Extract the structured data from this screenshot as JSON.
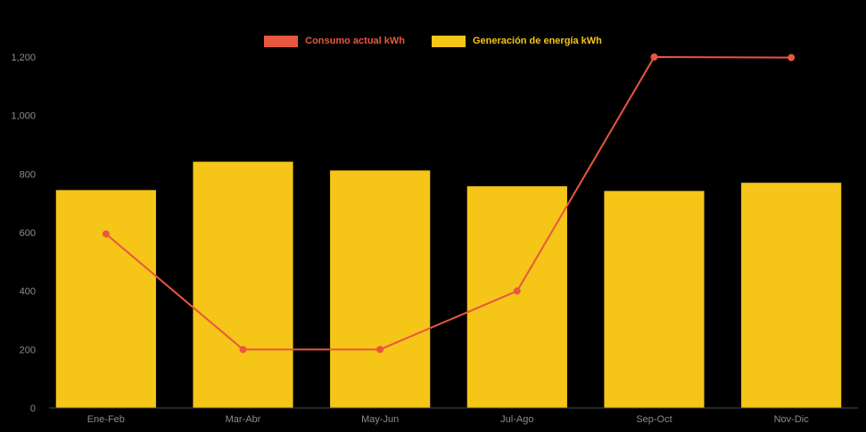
{
  "chart_data": {
    "type": "combo",
    "title": "",
    "categories": [
      "Ene-Feb",
      "Mar-Abr",
      "May-Jun",
      "Jul-Ago",
      "Sep-Oct",
      "Nov-Dic"
    ],
    "series": [
      {
        "name": "Consumo actual kWh",
        "type": "line",
        "color": "#E8573F",
        "values": [
          595,
          200,
          200,
          400,
          1200,
          1198
        ]
      },
      {
        "name": "Generación de energía kWh",
        "type": "bar",
        "color": "#F5C518",
        "values": [
          745,
          842,
          812,
          758,
          742,
          770
        ]
      }
    ],
    "xlabel": "",
    "ylabel": "",
    "ylim": [
      0,
      1200
    ],
    "ytick_interval": 200,
    "ytick_labels": [
      "0",
      "200",
      "400",
      "600",
      "800",
      "1,000",
      "1,200"
    ],
    "grid": false,
    "legend_position": "top"
  },
  "colors": {
    "background": "#000000",
    "axis_text": "#8C8C8C",
    "axis_line": "#4D4D4D"
  }
}
